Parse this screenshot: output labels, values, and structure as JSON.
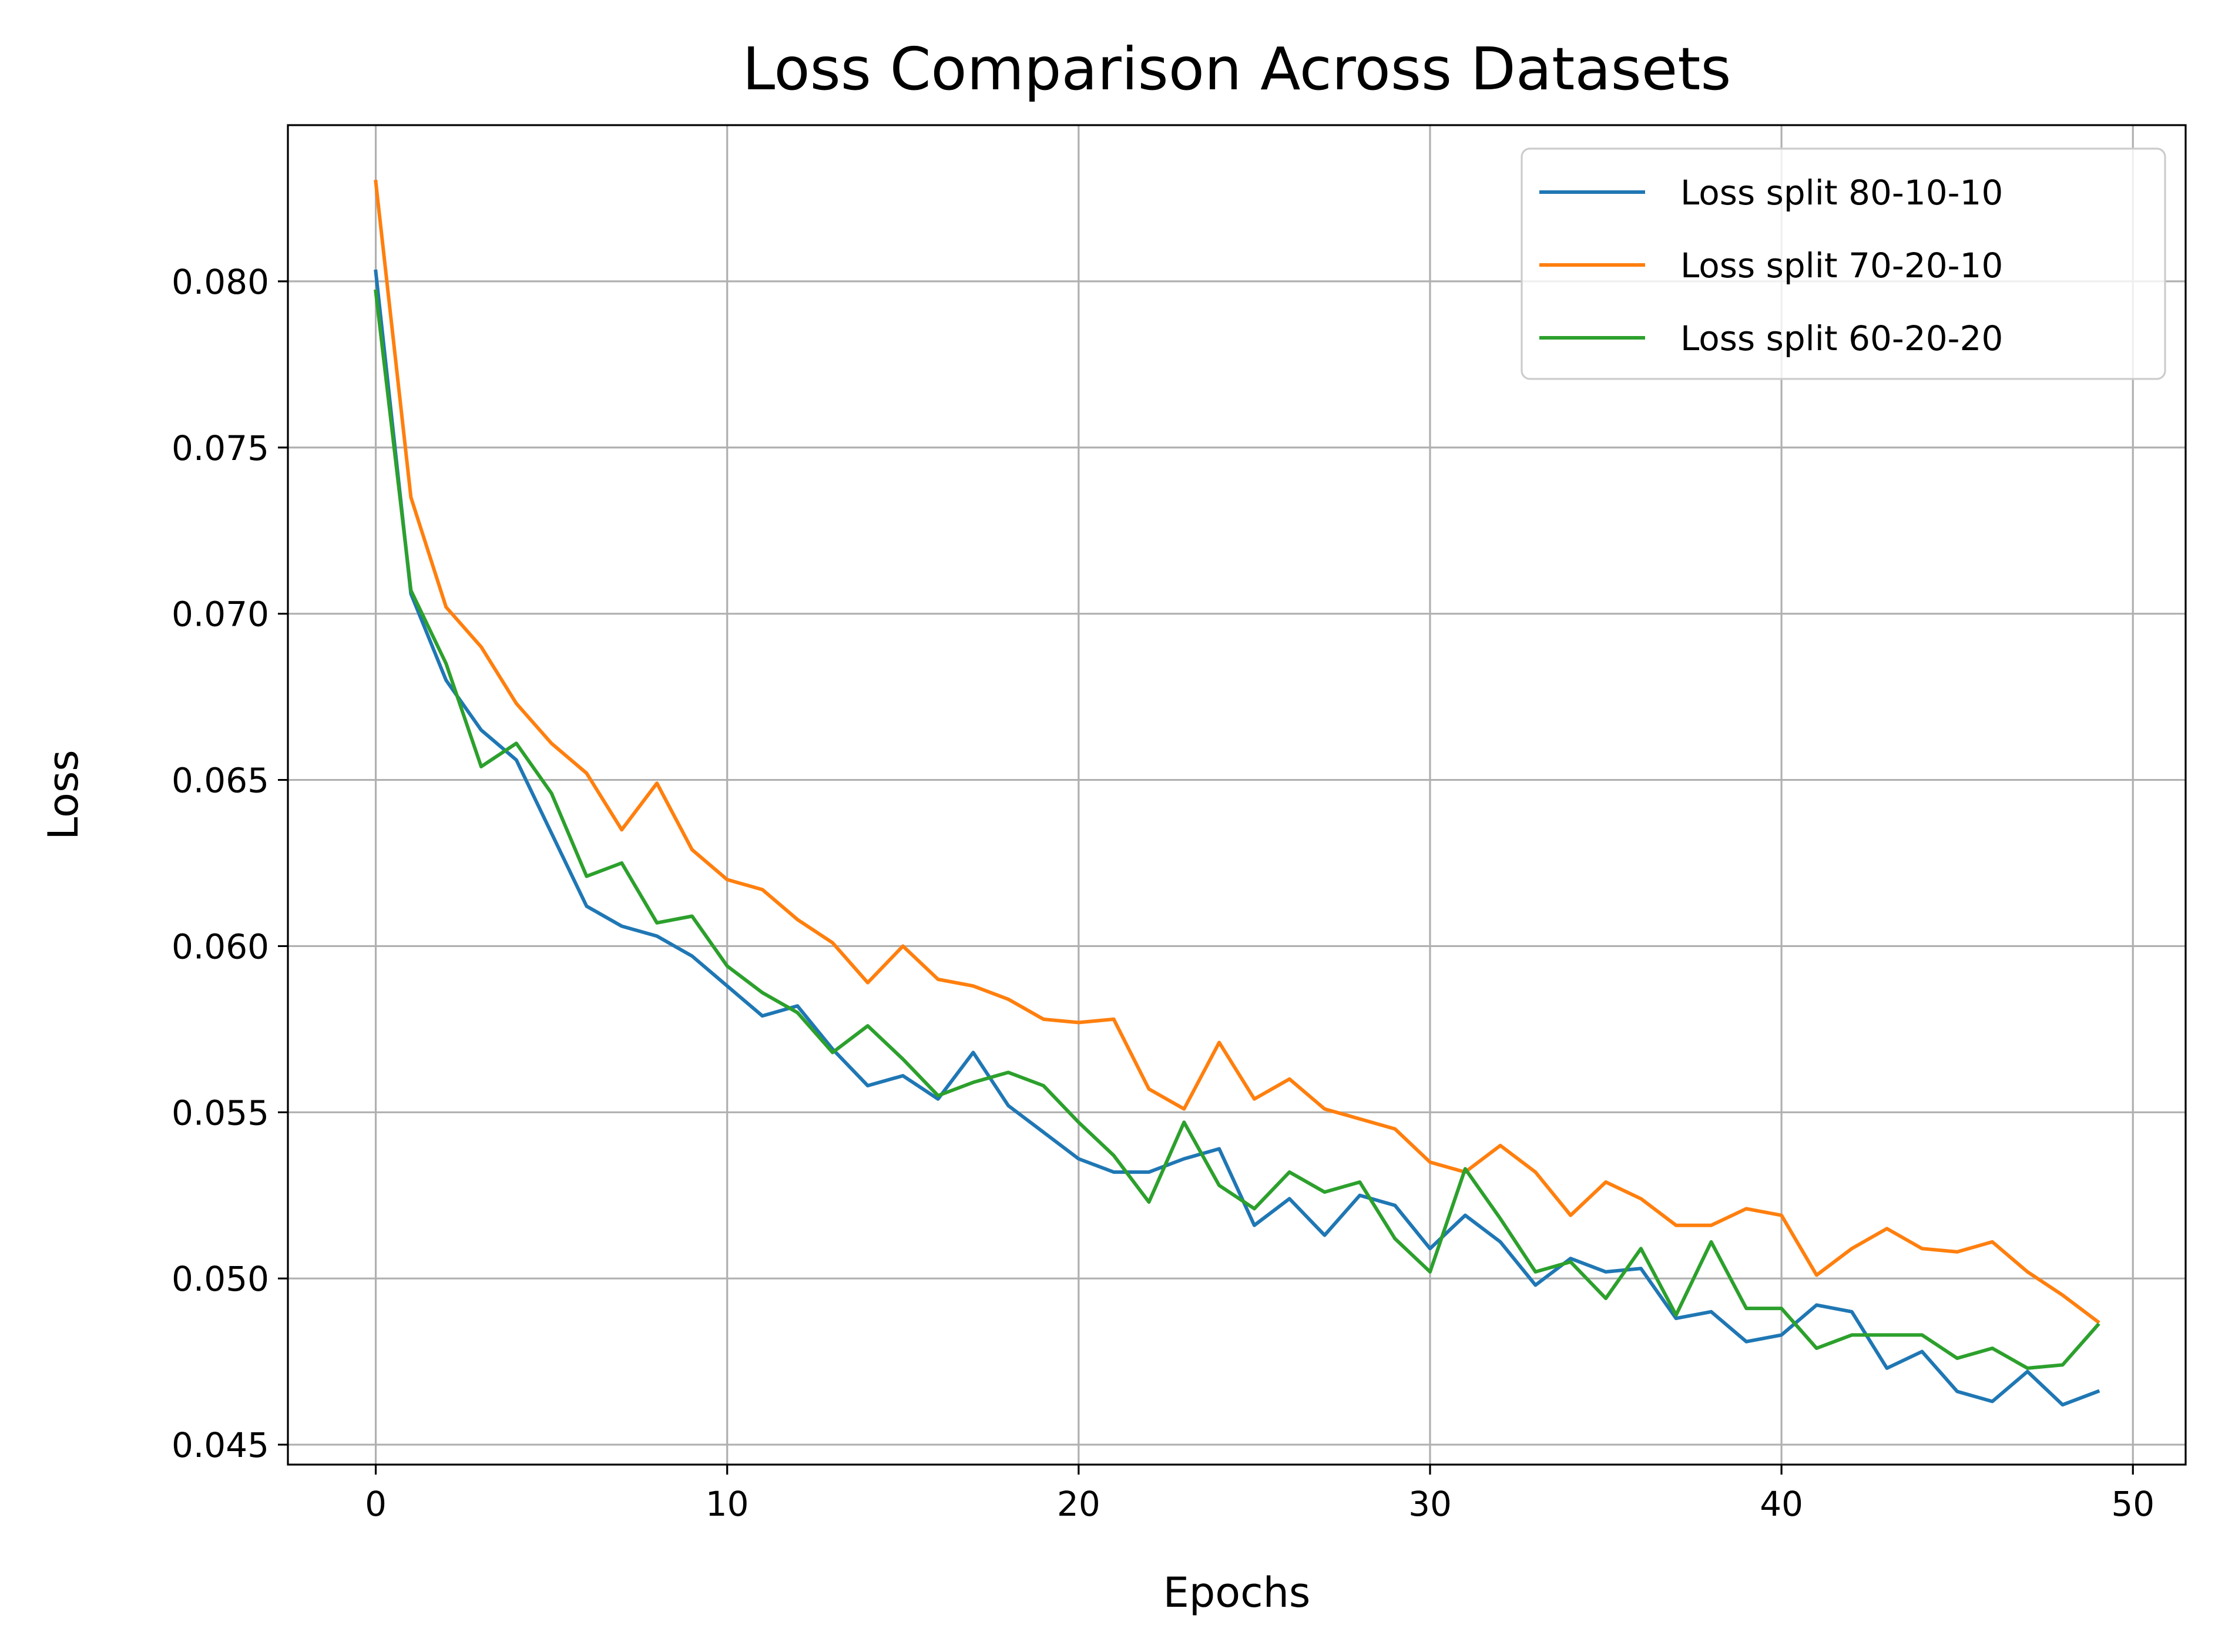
{
  "chart_data": {
    "type": "line",
    "title": "Loss Comparison Across Datasets",
    "xlabel": "Epochs",
    "ylabel": "Loss",
    "xlim": [
      -2.5,
      51.5
    ],
    "ylim": [
      0.0444,
      0.0847
    ],
    "xticks": [
      0,
      10,
      20,
      30,
      40,
      50
    ],
    "yticks": [
      0.045,
      0.05,
      0.055,
      0.06,
      0.065,
      0.07,
      0.075,
      0.08
    ],
    "xtick_labels": [
      "0",
      "10",
      "20",
      "30",
      "40",
      "50"
    ],
    "ytick_labels": [
      "0.045",
      "0.050",
      "0.055",
      "0.060",
      "0.065",
      "0.070",
      "0.075",
      "0.080"
    ],
    "grid": true,
    "legend_position": "top-right",
    "x": [
      0,
      1,
      2,
      3,
      4,
      5,
      6,
      7,
      8,
      9,
      10,
      11,
      12,
      13,
      14,
      15,
      16,
      17,
      18,
      19,
      20,
      21,
      22,
      23,
      24,
      25,
      26,
      27,
      28,
      29,
      30,
      31,
      32,
      33,
      34,
      35,
      36,
      37,
      38,
      39,
      40,
      41,
      42,
      43,
      44,
      45,
      46,
      47,
      48,
      49
    ],
    "series": [
      {
        "name": "Loss split 80-10-10",
        "color": "#1f77b4",
        "values": [
          0.0803,
          0.0706,
          0.068,
          0.0665,
          0.0656,
          0.0634,
          0.0612,
          0.0606,
          0.0603,
          0.0597,
          0.0588,
          0.0579,
          0.0582,
          0.0569,
          0.0558,
          0.0561,
          0.0554,
          0.0568,
          0.0552,
          0.0544,
          0.0536,
          0.0532,
          0.0532,
          0.0536,
          0.0539,
          0.0516,
          0.0524,
          0.0513,
          0.0525,
          0.0522,
          0.0509,
          0.0519,
          0.0511,
          0.0498,
          0.0506,
          0.0502,
          0.0503,
          0.0488,
          0.049,
          0.0481,
          0.0483,
          0.0492,
          0.049,
          0.0473,
          0.0478,
          0.0466,
          0.0463,
          0.0472,
          0.0462,
          0.0466
        ]
      },
      {
        "name": "Loss split 70-20-10",
        "color": "#ff7f0e",
        "values": [
          0.083,
          0.0735,
          0.0702,
          0.069,
          0.0673,
          0.0661,
          0.0652,
          0.0635,
          0.0649,
          0.0629,
          0.062,
          0.0617,
          0.0608,
          0.0601,
          0.0589,
          0.06,
          0.059,
          0.0588,
          0.0584,
          0.0578,
          0.0577,
          0.0578,
          0.0557,
          0.0551,
          0.0571,
          0.0554,
          0.056,
          0.0551,
          0.0548,
          0.0545,
          0.0535,
          0.0532,
          0.054,
          0.0532,
          0.0519,
          0.0529,
          0.0524,
          0.0516,
          0.0516,
          0.0521,
          0.0519,
          0.0501,
          0.0509,
          0.0515,
          0.0509,
          0.0508,
          0.0511,
          0.0502,
          0.0495,
          0.0487
        ]
      },
      {
        "name": "Loss split 60-20-20",
        "color": "#2ca02c",
        "values": [
          0.0797,
          0.0707,
          0.0685,
          0.0654,
          0.0661,
          0.0646,
          0.0621,
          0.0625,
          0.0607,
          0.0609,
          0.0594,
          0.0586,
          0.058,
          0.0568,
          0.0576,
          0.0566,
          0.0555,
          0.0559,
          0.0562,
          0.0558,
          0.0547,
          0.0537,
          0.0523,
          0.0547,
          0.0528,
          0.0521,
          0.0532,
          0.0526,
          0.0529,
          0.0512,
          0.0502,
          0.0533,
          0.0518,
          0.0502,
          0.0505,
          0.0494,
          0.0509,
          0.0489,
          0.0511,
          0.0491,
          0.0491,
          0.0479,
          0.0483,
          0.0483,
          0.0483,
          0.0476,
          0.0479,
          0.0473,
          0.0474,
          0.0486
        ]
      }
    ]
  }
}
